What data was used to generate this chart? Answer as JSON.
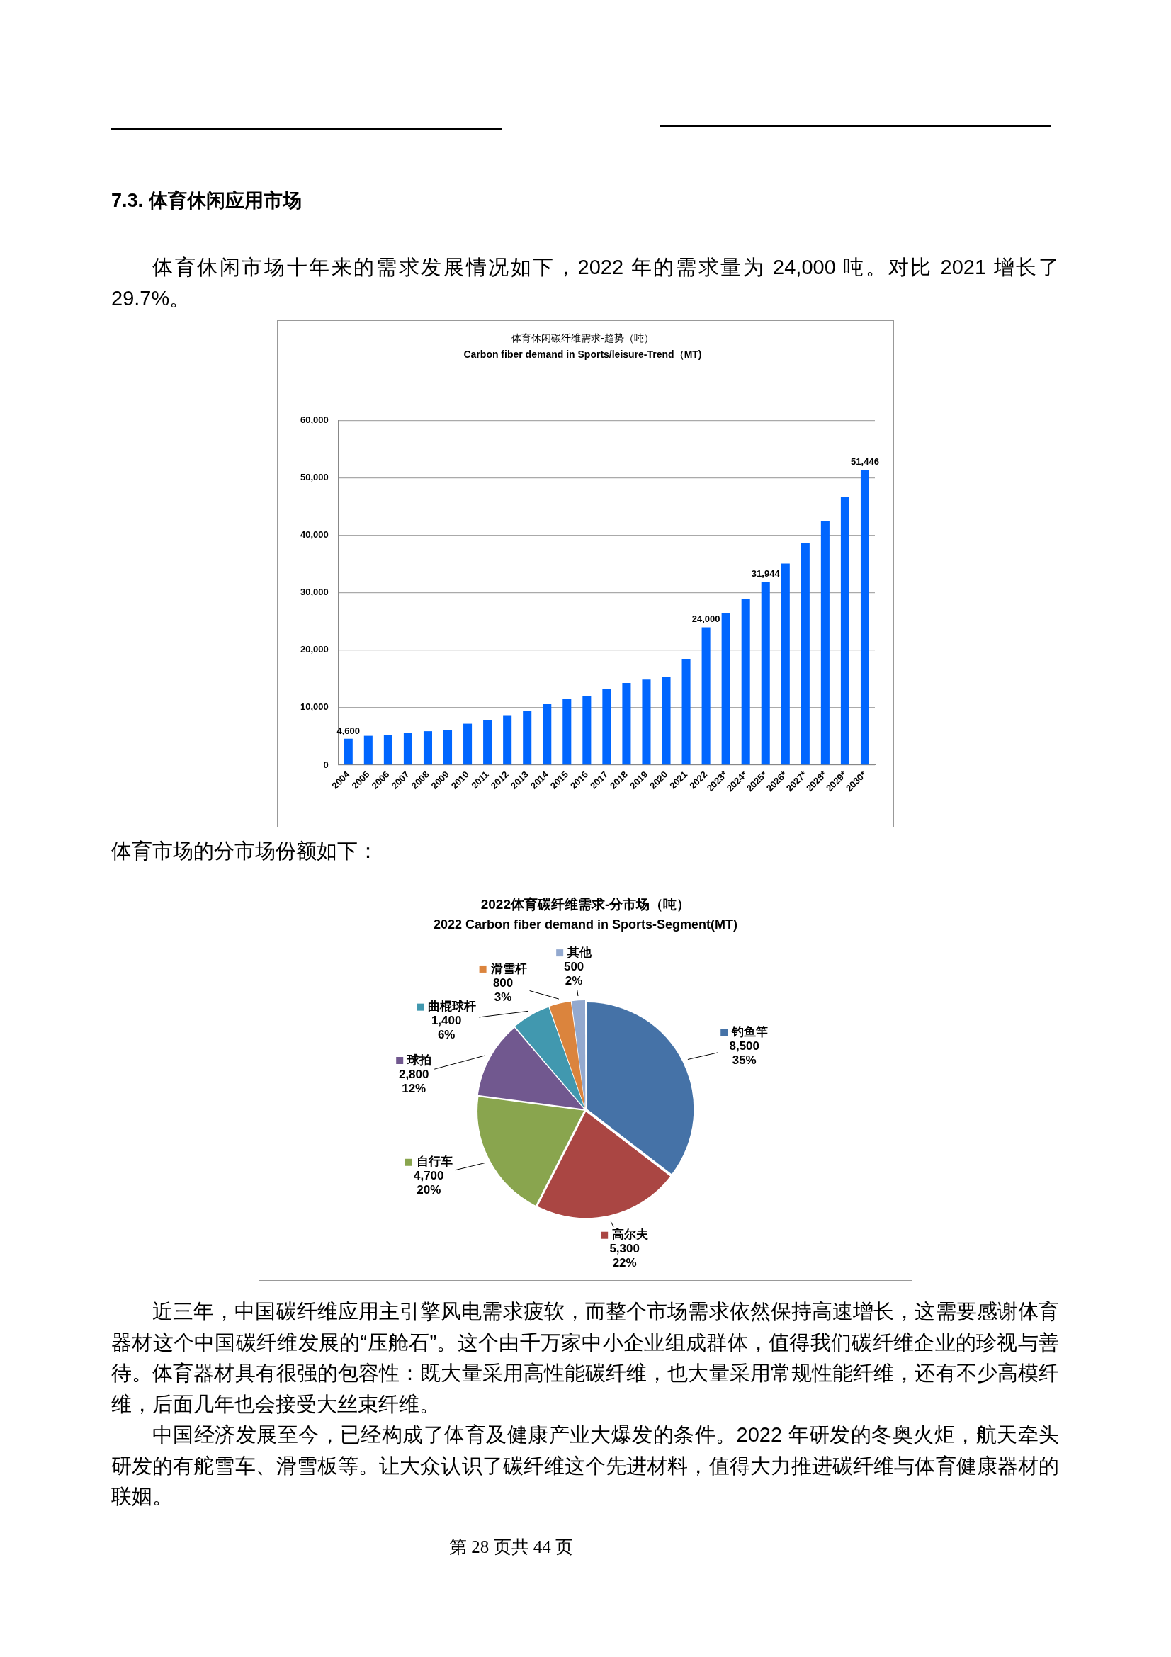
{
  "chart_data": [
    {
      "type": "bar",
      "title": "体育休闲碳纤维需求-趋势（吨）",
      "subtitle": "Carbon fiber demand in Sports/leisure-Trend（MT)",
      "categories": [
        "2004",
        "2005",
        "2006",
        "2007",
        "2008",
        "2009",
        "2010",
        "2011",
        "2012",
        "2013",
        "2014",
        "2015",
        "2016",
        "2017",
        "2018",
        "2019",
        "2020",
        "2021",
        "2022",
        "2023*",
        "2024*",
        "2025*",
        "2026*",
        "2027*",
        "2028*",
        "2029*",
        "2030*"
      ],
      "values": [
        4600,
        5100,
        5200,
        5600,
        5900,
        6100,
        7200,
        7900,
        8700,
        9500,
        10600,
        11600,
        12000,
        13200,
        14300,
        14900,
        15400,
        18500,
        24000,
        26500,
        29000,
        31944,
        35100,
        38700,
        42500,
        46700,
        51446
      ],
      "color": "#0066ff",
      "value_labels": [
        "4,600",
        null,
        null,
        null,
        null,
        null,
        null,
        null,
        null,
        null,
        null,
        null,
        null,
        null,
        null,
        null,
        null,
        null,
        "24,000",
        null,
        null,
        "31,944",
        null,
        null,
        null,
        null,
        "51,446"
      ],
      "ylim": [
        0,
        60000
      ],
      "yticks": [
        0,
        {
          "value": 10000,
          "label": "10,000"
        },
        {
          "value": 20000,
          "label": "20,000"
        },
        {
          "value": 30000,
          "label": "30,000"
        },
        {
          "value": 40000,
          "label": "40,000"
        },
        {
          "value": 50000,
          "label": "50,000"
        },
        {
          "value": 60000,
          "label": "60,000"
        }
      ],
      "grid": "y",
      "annotations": [
        "7.3. 体育休闲应用市场",
        "体育休闲市场十年来的需求发展情况如下，2022 年的需求量为 24,000 吨。对比 2021 增长了 29.7%。"
      ]
    },
    {
      "type": "pie",
      "title": "2022体育碳纤维需求-分市场（吨）",
      "subtitle": "2022 Carbon fiber demand in Sports-Segment(MT)",
      "categories": [
        "钓鱼竿",
        "高尔夫",
        "自行车",
        "球拍",
        "曲棍球杆",
        "滑雪杆",
        "其他"
      ],
      "values": [
        8500,
        5300,
        4700,
        2800,
        1400,
        800,
        500
      ],
      "colors": [
        "#4572a7",
        "#aa4643",
        "#89a54e",
        "#71588f",
        "#4198af",
        "#db843d",
        "#93a9cf"
      ],
      "value_labels": [
        "8,500\n35%",
        "5,300\n22%",
        "4,700\n20%",
        "2,800\n12%",
        "1,400\n6%",
        "800\n3%",
        "500\n2%"
      ],
      "legend": true,
      "annotations": [
        "体育市场的分市场份额如下：",
        "近三年，中国碳纤维应用主引擎风电需求疲软，而整个市场需求依然保持高速增长，这需要感谢体育器材这个中国碳纤维发展的“压舱石”。这个由千万家中小企业组成群体，值得我们碳纤维企业的珍视与善待。体育器材具有很强的包容性：既大量采用高性能碳纤维，也大量采用常规性能纤维，还有不少高模纤维，后面几年也会接受大丝束纤维。",
        "中国经济发展至今，已经构成了体育及健康产业大爆发的条件。2022 年研发的冬奥火炬，航天牵头研发的有舵雪车、滑雪板等。让大众认识了碳纤维这个先进材料，值得大力推进碳纤维与体育健康器材的联姻。",
        "第 28 页共 44 页"
      ]
    }
  ]
}
